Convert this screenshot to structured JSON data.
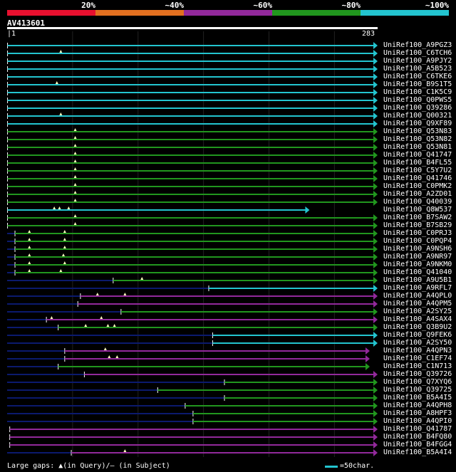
{
  "legend": {
    "labels": [
      "20%",
      "~40%",
      "~60%",
      "~80%",
      "~100%"
    ],
    "colors": [
      "#e8102f",
      "#e27020",
      "#92299b",
      "#21961e",
      "#23c4cf"
    ]
  },
  "query": {
    "id": "AV413601",
    "start": "1",
    "end": "283"
  },
  "colors": {
    "cyan": "#23c4cf",
    "green": "#21961e",
    "purple": "#92299b",
    "navy": "#0b1a6e",
    "gridline": "#222222"
  },
  "hits": [
    {
      "name": "UniRef100_A9PGZ3",
      "color": "cyan",
      "start": 0.3,
      "end": 283,
      "arrow": true,
      "gaps": []
    },
    {
      "name": "UniRef100_C6TCH6",
      "color": "cyan",
      "start": 0.3,
      "end": 283,
      "arrow": true,
      "gaps": [
        41
      ]
    },
    {
      "name": "UniRef100_A9PJY2",
      "color": "cyan",
      "start": 0.3,
      "end": 283,
      "arrow": true,
      "gaps": []
    },
    {
      "name": "UniRef100_A5B523",
      "color": "cyan",
      "start": 0.3,
      "end": 283,
      "arrow": true,
      "gaps": []
    },
    {
      "name": "UniRef100_C6TKE6",
      "color": "cyan",
      "start": 0.3,
      "end": 283,
      "arrow": true,
      "gaps": []
    },
    {
      "name": "UniRef100_B9S1T5",
      "color": "cyan",
      "start": 0.3,
      "end": 283,
      "arrow": true,
      "gaps": [
        38
      ]
    },
    {
      "name": "UniRef100_C1K5C9",
      "color": "cyan",
      "start": 0.3,
      "end": 283,
      "arrow": true,
      "gaps": []
    },
    {
      "name": "UniRef100_Q0PWS5",
      "color": "cyan",
      "start": 0.3,
      "end": 283,
      "arrow": true,
      "gaps": []
    },
    {
      "name": "UniRef100_Q39286",
      "color": "cyan",
      "start": 0.3,
      "end": 283,
      "arrow": true,
      "gaps": []
    },
    {
      "name": "UniRef100_Q00321",
      "color": "cyan",
      "start": 0.3,
      "end": 283,
      "arrow": true,
      "gaps": [
        41
      ]
    },
    {
      "name": "UniRef100_Q9XF89",
      "color": "cyan",
      "start": 0.3,
      "end": 283,
      "arrow": true,
      "gaps": []
    },
    {
      "name": "UniRef100_Q53N83",
      "color": "green",
      "start": 0.3,
      "end": 283,
      "arrow": true,
      "gaps": [
        52
      ]
    },
    {
      "name": "UniRef100_Q53N82",
      "color": "green",
      "start": 0.3,
      "end": 283,
      "arrow": true,
      "gaps": [
        52
      ]
    },
    {
      "name": "UniRef100_Q53N81",
      "color": "green",
      "start": 0.3,
      "end": 283,
      "arrow": true,
      "gaps": [
        52
      ]
    },
    {
      "name": "UniRef100_Q41747",
      "color": "green",
      "start": 0.3,
      "end": 283,
      "arrow": true,
      "gaps": [
        52
      ]
    },
    {
      "name": "UniRef100_B4FL55",
      "color": "green",
      "start": 0.3,
      "end": 283,
      "arrow": true,
      "gaps": [
        52
      ]
    },
    {
      "name": "UniRef100_C5Y7U2",
      "color": "green",
      "start": 0.3,
      "end": 283,
      "arrow": true,
      "gaps": [
        52
      ]
    },
    {
      "name": "UniRef100_Q41746",
      "color": "green",
      "start": 0.3,
      "end": 283,
      "arrow": true,
      "gaps": [
        52
      ]
    },
    {
      "name": "UniRef100_C0PMK2",
      "color": "green",
      "start": 0.3,
      "end": 283,
      "arrow": true,
      "gaps": [
        52
      ]
    },
    {
      "name": "UniRef100_A2ZD01",
      "color": "green",
      "start": 0.3,
      "end": 283,
      "arrow": true,
      "gaps": [
        52
      ]
    },
    {
      "name": "UniRef100_Q40039",
      "color": "green",
      "start": 0.3,
      "end": 283,
      "arrow": true,
      "gaps": [
        52
      ]
    },
    {
      "name": "UniRef100_Q8W537",
      "color": "cyan",
      "start": 0.3,
      "end": 231,
      "arrow": true,
      "gaps": [
        36,
        40,
        47
      ]
    },
    {
      "name": "UniRef100_B7SAW2",
      "color": "green",
      "start": 0.3,
      "end": 283,
      "arrow": true,
      "gaps": [
        52
      ]
    },
    {
      "name": "UniRef100_B7SB29",
      "color": "green",
      "start": 0.3,
      "end": 283,
      "arrow": true,
      "gaps": [
        52
      ]
    },
    {
      "name": "UniRef100_C0PRJ3",
      "color": "green",
      "start": 6,
      "end": 283,
      "arrow": true,
      "gaps": [
        17,
        44
      ]
    },
    {
      "name": "UniRef100_C0PQP4",
      "color": "green",
      "start": 6,
      "end": 283,
      "arrow": true,
      "gaps": [
        17,
        44
      ]
    },
    {
      "name": "UniRef100_A9NSH6",
      "color": "green",
      "start": 6,
      "end": 283,
      "arrow": true,
      "gaps": [
        17,
        44
      ]
    },
    {
      "name": "UniRef100_A9NR97",
      "color": "green",
      "start": 6,
      "end": 283,
      "arrow": true,
      "gaps": [
        17,
        43
      ]
    },
    {
      "name": "UniRef100_A9NKM0",
      "color": "green",
      "start": 6,
      "end": 283,
      "arrow": true,
      "gaps": [
        17,
        44
      ]
    },
    {
      "name": "UniRef100_Q41040",
      "color": "green",
      "start": 6,
      "end": 283,
      "arrow": true,
      "gaps": [
        17,
        41
      ]
    },
    {
      "name": "UniRef100_A9U5B1",
      "color": "green",
      "start": 81,
      "end": 283,
      "arrow": true,
      "gaps": [
        103
      ]
    },
    {
      "name": "UniRef100_A9RFL7",
      "color": "cyan",
      "start": 154,
      "end": 283,
      "arrow": true,
      "gaps": []
    },
    {
      "name": "UniRef100_A4QPL0",
      "color": "purple",
      "start": 56,
      "end": 283,
      "arrow": true,
      "gaps": [
        69,
        90
      ]
    },
    {
      "name": "UniRef100_A4QPM5",
      "color": "purple",
      "start": 54,
      "end": 283,
      "arrow": true,
      "gaps": []
    },
    {
      "name": "UniRef100_A2SY25",
      "color": "green",
      "start": 87,
      "end": 283,
      "arrow": true,
      "gaps": []
    },
    {
      "name": "UniRef100_A4SAX4",
      "color": "purple",
      "start": 30,
      "end": 283,
      "arrow": true,
      "gaps": [
        34,
        72
      ]
    },
    {
      "name": "UniRef100_Q3B9U2",
      "color": "green",
      "start": 39,
      "end": 283,
      "arrow": true,
      "gaps": [
        60,
        77,
        82
      ]
    },
    {
      "name": "UniRef100_Q9FEK6",
      "color": "cyan",
      "start": 157,
      "end": 283,
      "arrow": true,
      "gaps": []
    },
    {
      "name": "UniRef100_A2SY50",
      "color": "cyan",
      "start": 157,
      "end": 283,
      "arrow": true,
      "gaps": []
    },
    {
      "name": "UniRef100_A4QPN3",
      "color": "purple",
      "start": 44,
      "end": 277,
      "arrow": true,
      "gaps": [
        75
      ]
    },
    {
      "name": "UniRef100_C1EF74",
      "color": "purple",
      "start": 44,
      "end": 277,
      "arrow": true,
      "gaps": [
        78,
        84
      ]
    },
    {
      "name": "UniRef100_C1N713",
      "color": "green",
      "start": 39,
      "end": 277,
      "arrow": true,
      "gaps": []
    },
    {
      "name": "UniRef100_Q39726",
      "color": "purple",
      "start": 59,
      "end": 283,
      "arrow": true,
      "gaps": []
    },
    {
      "name": "UniRef100_Q7XYQ6",
      "color": "green",
      "start": 166,
      "end": 283,
      "arrow": true,
      "gaps": []
    },
    {
      "name": "UniRef100_Q39725",
      "color": "green",
      "start": 115,
      "end": 283,
      "arrow": true,
      "gaps": []
    },
    {
      "name": "UniRef100_B5A4I5",
      "color": "green",
      "start": 166,
      "end": 283,
      "arrow": true,
      "gaps": []
    },
    {
      "name": "UniRef100_A4QPH8",
      "color": "green",
      "start": 136,
      "end": 283,
      "arrow": true,
      "gaps": []
    },
    {
      "name": "UniRef100_A8HPF3",
      "color": "green",
      "start": 142,
      "end": 283,
      "arrow": true,
      "gaps": []
    },
    {
      "name": "UniRef100_A4QPI0",
      "color": "green",
      "start": 142,
      "end": 283,
      "arrow": true,
      "gaps": []
    },
    {
      "name": "UniRef100_Q41787",
      "color": "purple",
      "start": 2,
      "end": 283,
      "arrow": true,
      "gaps": []
    },
    {
      "name": "UniRef100_B4FQ80",
      "color": "purple",
      "start": 2,
      "end": 283,
      "arrow": true,
      "gaps": []
    },
    {
      "name": "UniRef100_B4FGG4",
      "color": "purple",
      "start": 2,
      "end": 283,
      "arrow": true,
      "gaps": []
    },
    {
      "name": "UniRef100_B5A4I4",
      "color": "purple",
      "start": 49,
      "end": 283,
      "arrow": true,
      "gaps": [
        90
      ]
    }
  ],
  "footer": {
    "text": "Large gaps: ▲(in Query)/– (in Subject)",
    "scale": "=50char."
  }
}
